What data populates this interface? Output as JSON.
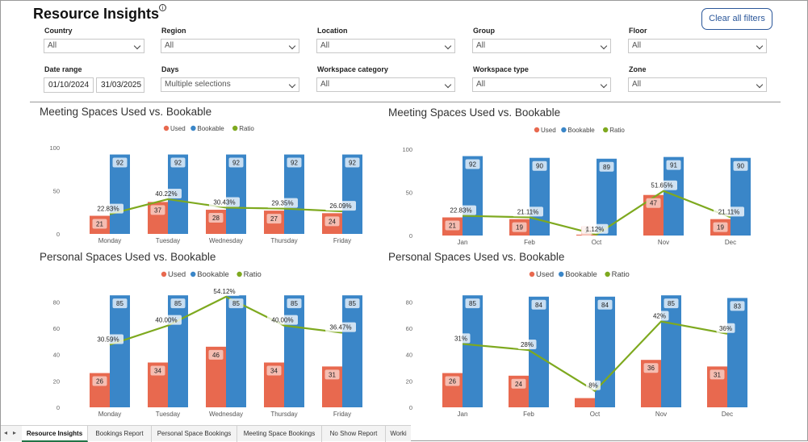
{
  "page": {
    "title": "Resource Insights",
    "clear_filters": "Clear all filters"
  },
  "filters": {
    "country": {
      "label": "Country",
      "value": "All"
    },
    "region": {
      "label": "Region",
      "value": "All"
    },
    "location": {
      "label": "Location",
      "value": "All"
    },
    "group": {
      "label": "Group",
      "value": "All"
    },
    "floor": {
      "label": "Floor",
      "value": "All"
    },
    "date_range": {
      "label": "Date range",
      "start": "01/10/2024",
      "end": "31/03/2025"
    },
    "days": {
      "label": "Days",
      "value": "Multiple selections"
    },
    "workspace_category": {
      "label": "Workspace category",
      "value": "All"
    },
    "workspace_type": {
      "label": "Workspace type",
      "value": "All"
    },
    "zone": {
      "label": "Zone",
      "value": "All"
    }
  },
  "colors": {
    "used": "#e8694f",
    "bookable": "#3a86c8",
    "ratio": "#7ea91f",
    "accent": "#2b579a"
  },
  "chart_data": [
    {
      "type": "bar",
      "title": "Meeting Spaces Used vs. Bookable",
      "legend": [
        "Used",
        "Bookable",
        "Ratio"
      ],
      "categories": [
        "Monday",
        "Tuesday",
        "Wednesday",
        "Thursday",
        "Friday"
      ],
      "ylim": [
        0,
        100
      ],
      "yticks": [
        "0",
        "50",
        "100"
      ],
      "series": [
        {
          "name": "Used",
          "values": [
            21,
            37,
            28,
            27,
            24
          ]
        },
        {
          "name": "Bookable",
          "values": [
            92,
            92,
            92,
            92,
            92
          ]
        },
        {
          "name": "Ratio",
          "values": [
            22.83,
            40.22,
            30.43,
            29.35,
            26.09
          ],
          "labels": [
            "22.83%",
            "40.22%",
            "30.43%",
            "29.35%",
            "26.09%"
          ]
        }
      ]
    },
    {
      "type": "bar",
      "title": "Meeting Spaces Used vs. Bookable",
      "legend": [
        "Used",
        "Bookable",
        "Ratio"
      ],
      "categories": [
        "Jan",
        "Feb",
        "Oct",
        "Nov",
        "Dec"
      ],
      "ylim": [
        0,
        100
      ],
      "yticks": [
        "0",
        "50",
        "100"
      ],
      "series": [
        {
          "name": "Used",
          "values": [
            21,
            19,
            1,
            47,
            19
          ]
        },
        {
          "name": "Bookable",
          "values": [
            92,
            90,
            89,
            91,
            90
          ]
        },
        {
          "name": "Ratio",
          "values": [
            22.83,
            21.11,
            1.12,
            51.65,
            21.11
          ],
          "labels": [
            "22.83%",
            "21.11%",
            "1.12%",
            "51.65%",
            "21.11%"
          ]
        }
      ]
    },
    {
      "type": "bar",
      "title": "Personal Spaces Used vs. Bookable",
      "legend": [
        "Used",
        "Bookable",
        "Ratio"
      ],
      "categories": [
        "Monday",
        "Tuesday",
        "Wednesday",
        "Thursday",
        "Friday"
      ],
      "ylim": [
        0,
        90
      ],
      "yticks": [
        "0",
        "20",
        "40",
        "60",
        "80"
      ],
      "series": [
        {
          "name": "Used",
          "values": [
            26,
            34,
            46,
            34,
            31
          ]
        },
        {
          "name": "Bookable",
          "values": [
            85,
            85,
            85,
            85,
            85
          ]
        },
        {
          "name": "Ratio",
          "values": [
            30.59,
            40.0,
            54.12,
            40.0,
            36.47
          ],
          "labels": [
            "30.59%",
            "40.00%",
            "54.12%",
            "40.00%",
            "36.47%"
          ]
        }
      ]
    },
    {
      "type": "bar",
      "title": "Personal Spaces Used vs. Bookable",
      "legend": [
        "Used",
        "Bookable",
        "Ratio"
      ],
      "categories": [
        "Jan",
        "Feb",
        "Oct",
        "Nov",
        "Dec"
      ],
      "ylim": [
        0,
        90
      ],
      "yticks": [
        "0",
        "20",
        "40",
        "60",
        "80"
      ],
      "series": [
        {
          "name": "Used",
          "values": [
            26,
            24,
            7,
            36,
            31
          ],
          "labels": [
            "26",
            "24",
            "",
            "36",
            "31"
          ]
        },
        {
          "name": "Bookable",
          "values": [
            85,
            84,
            84,
            85,
            83
          ]
        },
        {
          "name": "Ratio",
          "values": [
            31,
            28,
            8,
            42,
            36
          ],
          "labels": [
            "31%",
            "28%",
            "8%",
            "42%",
            "36%"
          ]
        }
      ]
    }
  ],
  "tabs": [
    "Resource Insights",
    "Bookings Report",
    "Personal Space Bookings",
    "Meeting Space Bookings",
    "No Show Report",
    "Worki"
  ],
  "tab_nav": {
    "prev": "◂",
    "next": "▸"
  }
}
